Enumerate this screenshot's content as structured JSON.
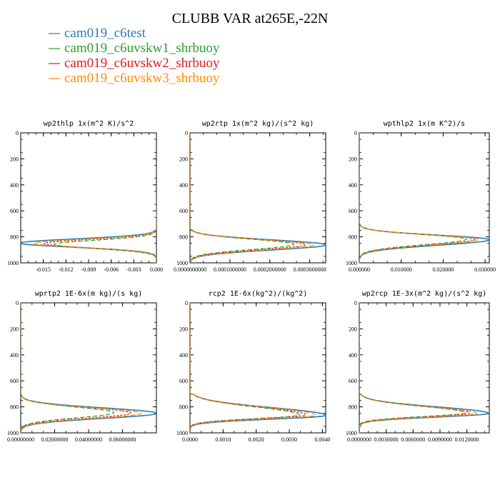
{
  "title": "CLUBB VAR at265E,-22N",
  "legend": [
    {
      "name": "cam019_c6test",
      "color": "#2a7db4"
    },
    {
      "name": "cam019_c6uvskw1_shrbuoy",
      "color": "#2ca02c"
    },
    {
      "name": "cam019_c6uvskw2_shrbuoy",
      "color": "#e41a1c"
    },
    {
      "name": "cam019_c6uvskw3_shrbuoy",
      "color": "#ff8c00"
    }
  ],
  "chart_data": [
    {
      "type": "line",
      "title": "wp2thlp  1x(m^2 K)/s^2",
      "xlim": [
        -0.018,
        0.0
      ],
      "ylim": [
        1000,
        0
      ],
      "xticks": [
        -0.015,
        -0.012,
        -0.009,
        -0.006,
        -0.003,
        0.0
      ],
      "xtick_labels": [
        "-0.015",
        "-0.012",
        "-0.009",
        "-0.006",
        "-0.003",
        "0.000"
      ],
      "yticks": [
        0,
        200,
        400,
        600,
        800,
        1000
      ],
      "ytick_labels": [
        "0",
        "200",
        "400",
        "600",
        "800",
        "1000"
      ],
      "profile": {
        "base": 0.0,
        "surface_offset": 0.0002,
        "peak_y": 848,
        "upper_width": 45,
        "lower_width": 45,
        "mixed_top": 750,
        "upper_exp": 2.0
      },
      "series": [
        {
          "peak": -0.0181,
          "color": "#2a7db4",
          "dash": "",
          "width": 1.6,
          "peak_y": 848
        },
        {
          "peak": -0.0136,
          "color": "#2ca02c",
          "dash": "6,3",
          "width": 1.2,
          "peak_y": 858
        },
        {
          "peak": -0.0149,
          "color": "#e41a1c",
          "dash": "3,2",
          "width": 1.2,
          "peak_y": 852
        },
        {
          "peak": -0.0163,
          "color": "#ff8c00",
          "dash": "7,3",
          "width": 1.2,
          "peak_y": 850
        }
      ]
    },
    {
      "type": "line",
      "title": "wp2rtp  1x(m^2 kg)/(s^2 kg)",
      "xlim": [
        0.0,
        0.00034
      ],
      "ylim": [
        1000,
        0
      ],
      "xticks": [
        0.0,
        0.0001,
        0.0002,
        0.0003
      ],
      "xtick_labels": [
        "0.0000000000",
        "0.0001000000",
        "0.0002000000",
        "0.0003000000"
      ],
      "yticks": [
        0,
        200,
        400,
        600,
        800,
        1000
      ],
      "ytick_labels": [
        "0",
        "200",
        "400",
        "600",
        "800",
        "1000"
      ],
      "profile": {
        "base": 0.0,
        "surface_offset": 0.0,
        "peak_y": 848,
        "upper_width": 55,
        "lower_width": 55,
        "mixed_top": 740,
        "upper_exp": 2.0
      },
      "series": [
        {
          "peak": 0.00034,
          "color": "#2a7db4",
          "dash": "",
          "width": 1.6,
          "peak_y": 862
        },
        {
          "peak": 0.00026,
          "color": "#2ca02c",
          "dash": "6,3",
          "width": 1.2,
          "peak_y": 858
        },
        {
          "peak": 0.00029,
          "color": "#e41a1c",
          "dash": "3,2",
          "width": 1.2,
          "peak_y": 860
        },
        {
          "peak": 0.00031,
          "color": "#ff8c00",
          "dash": "7,3",
          "width": 1.2,
          "peak_y": 862
        }
      ]
    },
    {
      "type": "line",
      "title": "wpthlp2  1x(m K^2)/s",
      "xlim": [
        0.0,
        0.031
      ],
      "ylim": [
        1000,
        0
      ],
      "xticks": [
        0.0,
        0.01,
        0.02,
        0.03
      ],
      "xtick_labels": [
        "0.000000",
        "0.010000",
        "0.020000",
        "0.030000"
      ],
      "yticks": [
        0,
        200,
        400,
        600,
        800,
        1000
      ],
      "ytick_labels": [
        "0",
        "200",
        "400",
        "600",
        "800",
        "1000"
      ],
      "profile": {
        "base": 0.0,
        "surface_offset": 0.0,
        "peak_y": 822,
        "upper_width": 50,
        "lower_width": 60,
        "mixed_top": 690,
        "upper_exp": 2.0
      },
      "series": [
        {
          "peak": 0.031,
          "color": "#2a7db4",
          "dash": "",
          "width": 1.6,
          "peak_y": 822
        },
        {
          "peak": 0.0255,
          "color": "#2ca02c",
          "dash": "6,3",
          "width": 1.2,
          "peak_y": 818
        },
        {
          "peak": 0.0275,
          "color": "#e41a1c",
          "dash": "3,2",
          "width": 1.2,
          "peak_y": 820
        },
        {
          "peak": 0.0285,
          "color": "#ff8c00",
          "dash": "7,3",
          "width": 1.2,
          "peak_y": 820
        }
      ]
    },
    {
      "type": "line",
      "title": "wprtp2  1E-6x(m kg)/(s kg)",
      "xlim": [
        0.0,
        0.08
      ],
      "ylim": [
        1000,
        0
      ],
      "xticks": [
        0.0,
        0.02,
        0.04,
        0.06
      ],
      "xtick_labels": [
        "0.00000000",
        "0.02000000",
        "0.04000000",
        "0.06000000"
      ],
      "yticks": [
        0,
        200,
        400,
        600,
        800,
        1000
      ],
      "ytick_labels": [
        "0",
        "200",
        "400",
        "600",
        "800",
        "1000"
      ],
      "profile": {
        "base": 0.0,
        "surface_offset": 0.0,
        "peak_y": 848,
        "upper_width": 60,
        "lower_width": 55,
        "mixed_top": 700,
        "upper_exp": 2.0
      },
      "series": [
        {
          "peak": 0.08,
          "color": "#2a7db4",
          "dash": "",
          "width": 1.6,
          "peak_y": 850
        },
        {
          "peak": 0.055,
          "color": "#2ca02c",
          "dash": "6,3",
          "width": 1.2,
          "peak_y": 845
        },
        {
          "peak": 0.065,
          "color": "#e41a1c",
          "dash": "3,2",
          "width": 1.2,
          "peak_y": 848
        },
        {
          "peak": 0.071,
          "color": "#ff8c00",
          "dash": "7,3",
          "width": 1.2,
          "peak_y": 850
        }
      ]
    },
    {
      "type": "line",
      "title": "rcp2  1E-6x(kg^2)/(kg^2)",
      "xlim": [
        0.0,
        0.0041
      ],
      "ylim": [
        1000,
        0
      ],
      "xticks": [
        0.0,
        0.001,
        0.002,
        0.003,
        0.004
      ],
      "xtick_labels": [
        "0.0000",
        "0.0010",
        "0.0020",
        "0.0030",
        "0.0040"
      ],
      "yticks": [
        0,
        200,
        400,
        600,
        800,
        1000
      ],
      "ytick_labels": [
        "0",
        "200",
        "400",
        "600",
        "800",
        "1000"
      ],
      "profile": {
        "base": 0.0,
        "surface_offset": 0.0,
        "peak_y": 865,
        "upper_width": 85,
        "lower_width": 40,
        "mixed_top": 700,
        "upper_exp": 2.0
      },
      "series": [
        {
          "peak": 0.0041,
          "color": "#2a7db4",
          "dash": "",
          "width": 1.6,
          "peak_y": 866
        },
        {
          "peak": 0.0033,
          "color": "#2ca02c",
          "dash": "6,3",
          "width": 1.2,
          "peak_y": 862
        },
        {
          "peak": 0.0035,
          "color": "#e41a1c",
          "dash": "3,2",
          "width": 1.2,
          "peak_y": 862
        },
        {
          "peak": 0.0038,
          "color": "#ff8c00",
          "dash": "7,3",
          "width": 1.2,
          "peak_y": 864
        }
      ]
    },
    {
      "type": "line",
      "title": "wp2rcp  1E-3x(m^2 kg)/(s^2 kg)",
      "xlim": [
        0.0,
        0.0145
      ],
      "ylim": [
        1000,
        0
      ],
      "xticks": [
        0.0,
        0.003,
        0.006,
        0.009,
        0.012
      ],
      "xtick_labels": [
        "0.0000000",
        "0.0030000",
        "0.0060000",
        "0.0090000",
        "0.0120000"
      ],
      "yticks": [
        0,
        200,
        400,
        600,
        800,
        1000
      ],
      "ytick_labels": [
        "0",
        "200",
        "400",
        "600",
        "800",
        "1000"
      ],
      "profile": {
        "base": 0.0,
        "surface_offset": 0.0,
        "peak_y": 850,
        "upper_width": 70,
        "lower_width": 40,
        "mixed_top": 700,
        "upper_exp": 2.0
      },
      "series": [
        {
          "peak": 0.0144,
          "color": "#2a7db4",
          "dash": "",
          "width": 1.6,
          "peak_y": 850
        },
        {
          "peak": 0.0118,
          "color": "#2ca02c",
          "dash": "6,3",
          "width": 1.2,
          "peak_y": 846
        },
        {
          "peak": 0.0123,
          "color": "#e41a1c",
          "dash": "3,2",
          "width": 1.2,
          "peak_y": 848
        },
        {
          "peak": 0.0131,
          "color": "#ff8c00",
          "dash": "7,3",
          "width": 1.2,
          "peak_y": 850
        }
      ]
    }
  ]
}
